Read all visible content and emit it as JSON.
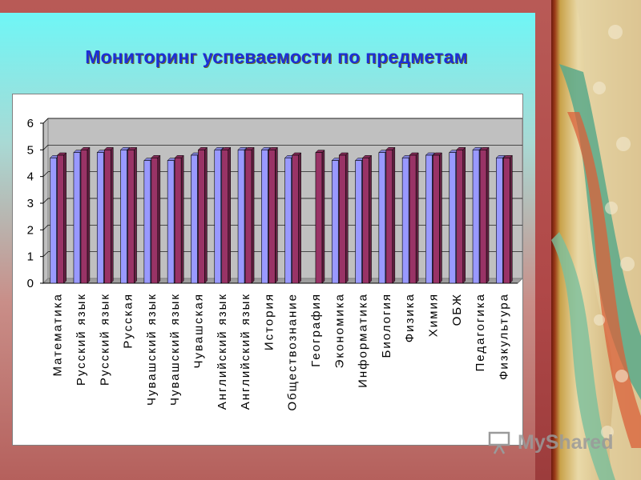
{
  "title": "Мониторинг успеваемости по предметам",
  "watermark": "MyShared",
  "colors": {
    "series1": "#9999ff",
    "series2": "#993366",
    "plot_area": "#c0c0c0",
    "title": "#1c2fd6"
  },
  "chart_data": {
    "type": "bar",
    "title": "",
    "xlabel": "",
    "ylabel": "",
    "ylim": [
      0,
      6
    ],
    "yticks": [
      0,
      1,
      2,
      3,
      4,
      5,
      6
    ],
    "grid": true,
    "legend": "none",
    "categories": [
      "Математика",
      "Русский язык",
      "Русский язык",
      "Русская",
      "Чувашский язык",
      "Чувашский язык",
      "Чувашская",
      "Английский язык",
      "Английский язык",
      "История",
      "Обществознание",
      "География",
      "Экономика",
      "Информатика",
      "Биология",
      "Физика",
      "Химия",
      "ОБЖ",
      "Педагогика",
      "Физкультура"
    ],
    "series": [
      {
        "values": [
          4.7,
          4.9,
          4.9,
          5.0,
          4.6,
          4.6,
          4.8,
          5.0,
          5.0,
          5.0,
          4.7,
          0,
          4.6,
          4.6,
          4.9,
          4.7,
          4.8,
          4.9,
          5.0,
          4.7
        ]
      },
      {
        "values": [
          4.8,
          5.0,
          5.0,
          5.0,
          4.7,
          4.7,
          5.0,
          5.0,
          5.0,
          5.0,
          4.8,
          4.9,
          4.8,
          4.7,
          5.0,
          4.8,
          4.8,
          5.0,
          5.0,
          4.7
        ]
      }
    ]
  }
}
